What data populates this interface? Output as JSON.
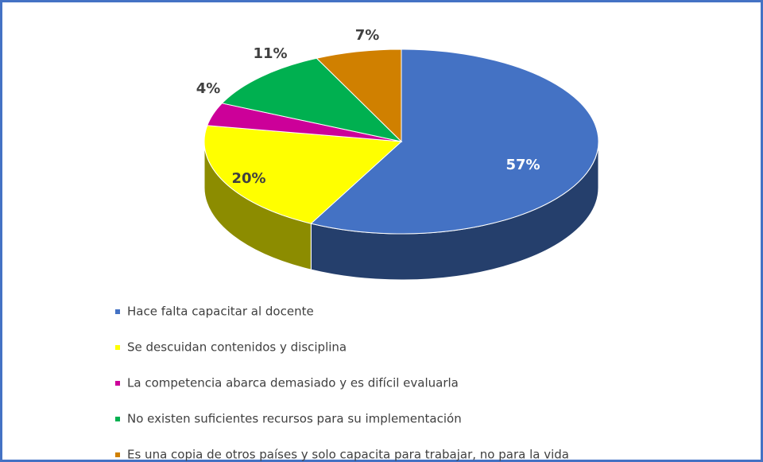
{
  "chart_data": {
    "type": "pie",
    "categories": [
      "Hace falta capacitar al docente",
      "Se descuidan contenidos y disciplina",
      "La competencia abarca demasiado y es difícil evaluarla",
      "No existen suficientes recursos para su implementación",
      "Es una copia de otros países y solo capacita para trabajar, no para la vida"
    ],
    "values": [
      57,
      20,
      4,
      11,
      7
    ],
    "value_labels": [
      "57%",
      "20%",
      "4%",
      "11%",
      "7%"
    ],
    "colors": [
      "#4472c4",
      "#ffff00",
      "#cc0099",
      "#00b050",
      "#d08000"
    ],
    "legend": "bottom"
  }
}
